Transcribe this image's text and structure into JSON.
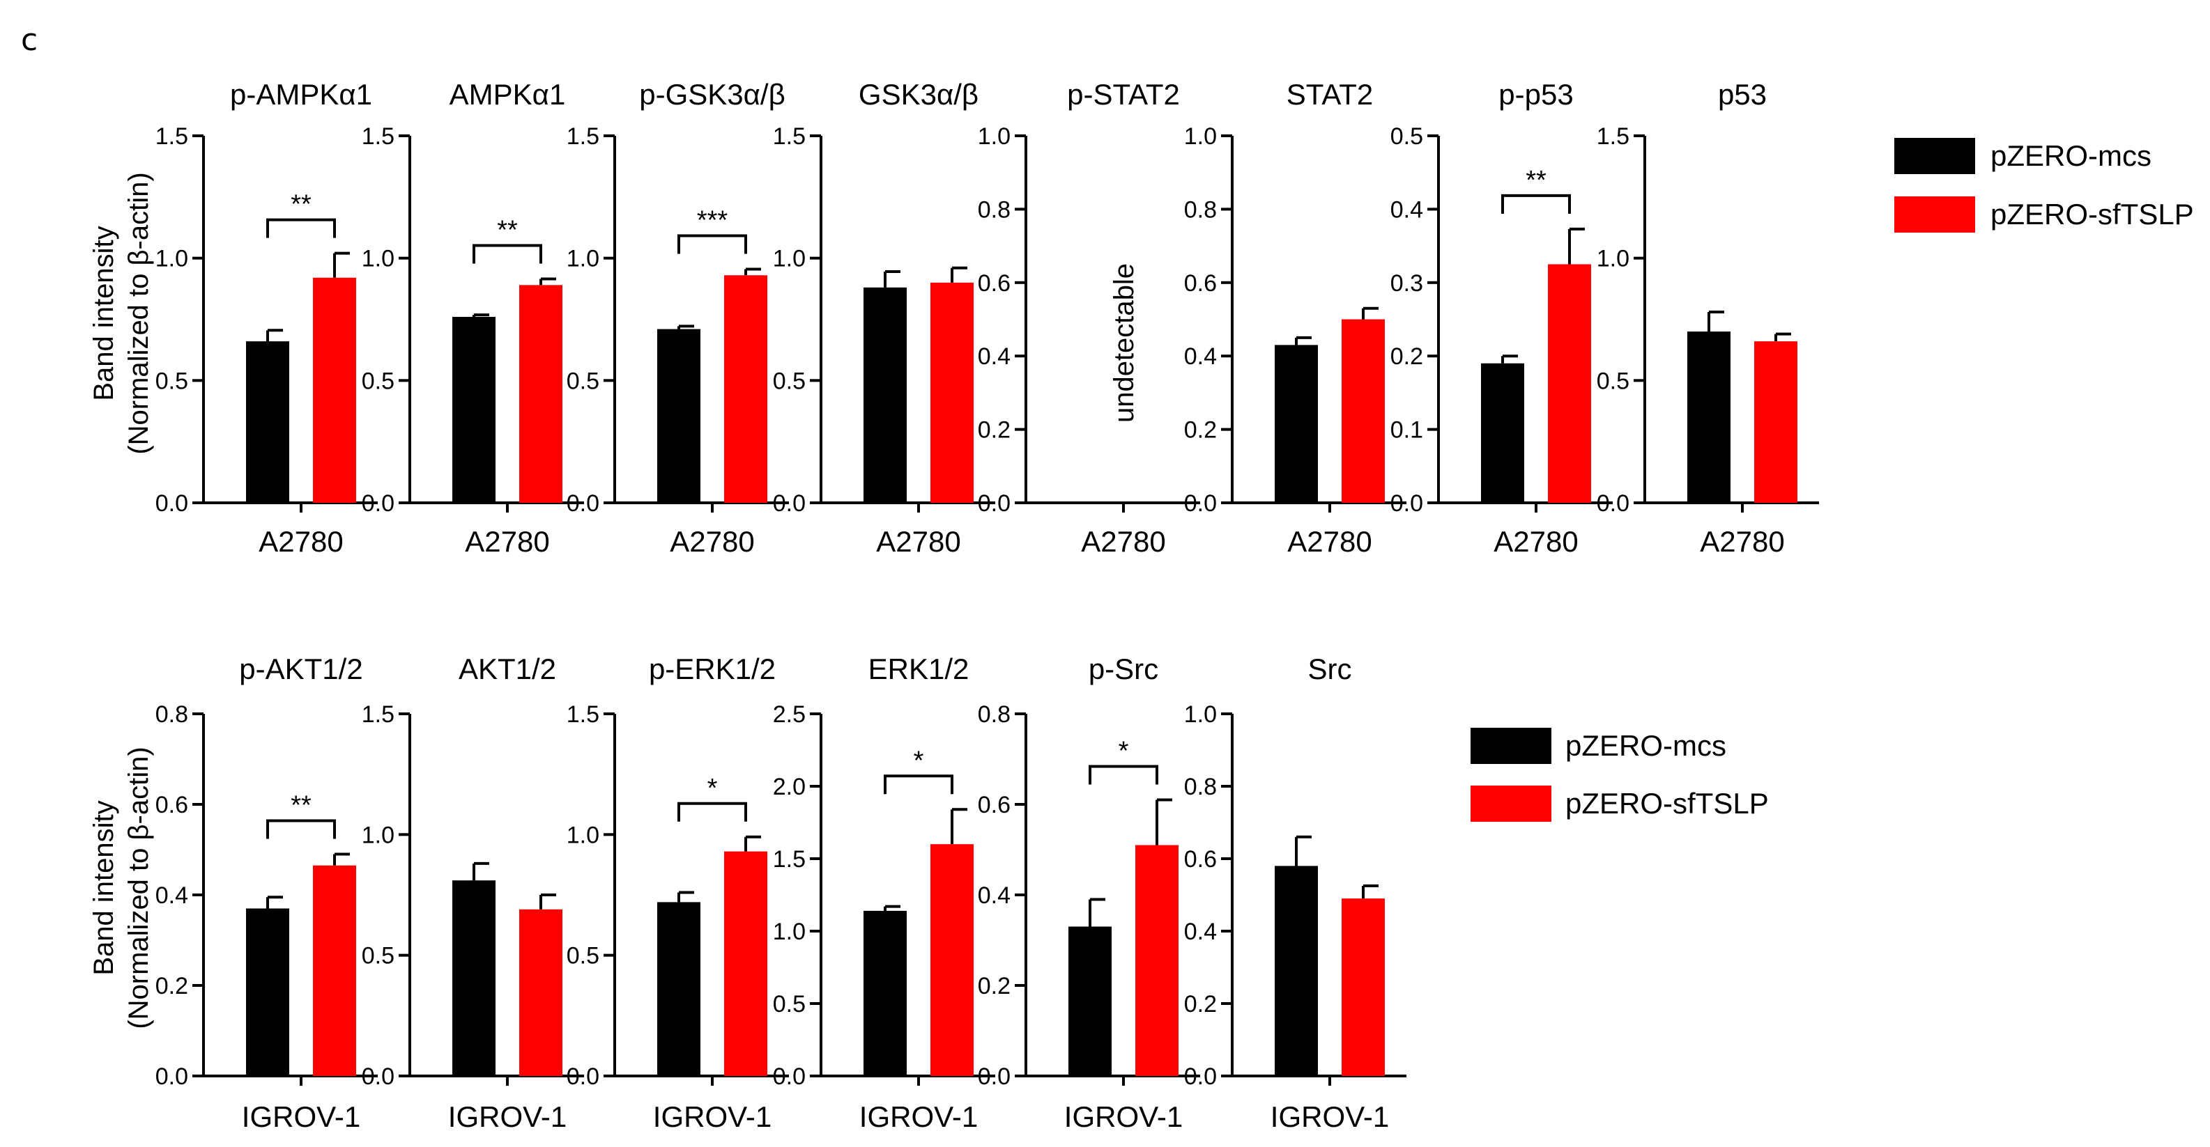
{
  "panel_label": "c",
  "y_label_line1": "Band intensity",
  "y_label_line2": "(Normalized to β-actin)",
  "legend": [
    {
      "label": "pZERO-mcs",
      "color": "#000000"
    },
    {
      "label": "pZERO-sfTSLP",
      "color": "#ff0000"
    }
  ],
  "colors": {
    "control": "#000000",
    "treatment": "#ff0000",
    "axis": "#000000"
  },
  "chart_data": [
    {
      "type": "bar",
      "title": "p-AMPKα1",
      "categories": [
        "A2780"
      ],
      "series": [
        {
          "name": "pZERO-mcs",
          "values": [
            0.66
          ],
          "errors": [
            0.045
          ]
        },
        {
          "name": "pZERO-sfTSLP",
          "values": [
            0.92
          ],
          "errors": [
            0.1
          ]
        }
      ],
      "ylim": [
        0,
        1.5
      ],
      "yticks": [
        "0.0",
        "0.5",
        "1.0",
        "1.5"
      ],
      "significance": "**"
    },
    {
      "type": "bar",
      "title": "AMPKα1",
      "categories": [
        "A2780"
      ],
      "series": [
        {
          "name": "pZERO-mcs",
          "values": [
            0.76
          ],
          "errors": [
            0.008
          ]
        },
        {
          "name": "pZERO-sfTSLP",
          "values": [
            0.89
          ],
          "errors": [
            0.025
          ]
        }
      ],
      "ylim": [
        0,
        1.5
      ],
      "yticks": [
        "0.0",
        "0.5",
        "1.0",
        "1.5"
      ],
      "significance": "**"
    },
    {
      "type": "bar",
      "title": "p-GSK3α/β",
      "categories": [
        "A2780"
      ],
      "series": [
        {
          "name": "pZERO-mcs",
          "values": [
            0.71
          ],
          "errors": [
            0.012
          ]
        },
        {
          "name": "pZERO-sfTSLP",
          "values": [
            0.93
          ],
          "errors": [
            0.025
          ]
        }
      ],
      "ylim": [
        0,
        1.5
      ],
      "yticks": [
        "0.0",
        "0.5",
        "1.0",
        "1.5"
      ],
      "significance": "***"
    },
    {
      "type": "bar",
      "title": "GSK3α/β",
      "categories": [
        "A2780"
      ],
      "series": [
        {
          "name": "pZERO-mcs",
          "values": [
            0.88
          ],
          "errors": [
            0.065
          ]
        },
        {
          "name": "pZERO-sfTSLP",
          "values": [
            0.9
          ],
          "errors": [
            0.06
          ]
        }
      ],
      "ylim": [
        0,
        1.5
      ],
      "yticks": [
        "0.0",
        "0.5",
        "1.0",
        "1.5"
      ],
      "significance": ""
    },
    {
      "type": "bar",
      "title": "p-STAT2",
      "categories": [
        "A2780"
      ],
      "series": [
        {
          "name": "pZERO-mcs",
          "values": [
            0
          ],
          "errors": [
            0
          ]
        },
        {
          "name": "pZERO-sfTSLP",
          "values": [
            0
          ],
          "errors": [
            0
          ]
        }
      ],
      "ylim": [
        0,
        1.0
      ],
      "yticks": [
        "0.0",
        "0.2",
        "0.4",
        "0.6",
        "0.8",
        "1.0"
      ],
      "significance": "",
      "annotation": "undetectable"
    },
    {
      "type": "bar",
      "title": "STAT2",
      "categories": [
        "A2780"
      ],
      "series": [
        {
          "name": "pZERO-mcs",
          "values": [
            0.43
          ],
          "errors": [
            0.02
          ]
        },
        {
          "name": "pZERO-sfTSLP",
          "values": [
            0.5
          ],
          "errors": [
            0.03
          ]
        }
      ],
      "ylim": [
        0,
        1.0
      ],
      "yticks": [
        "0.0",
        "0.2",
        "0.4",
        "0.6",
        "0.8",
        "1.0"
      ],
      "significance": ""
    },
    {
      "type": "bar",
      "title": "p-p53",
      "categories": [
        "A2780"
      ],
      "series": [
        {
          "name": "pZERO-mcs",
          "values": [
            0.19
          ],
          "errors": [
            0.01
          ]
        },
        {
          "name": "pZERO-sfTSLP",
          "values": [
            0.325
          ],
          "errors": [
            0.048
          ]
        }
      ],
      "ylim": [
        0,
        0.5
      ],
      "yticks": [
        "0.0",
        "0.1",
        "0.2",
        "0.3",
        "0.4",
        "0.5"
      ],
      "significance": "**"
    },
    {
      "type": "bar",
      "title": "p53",
      "categories": [
        "A2780"
      ],
      "series": [
        {
          "name": "pZERO-mcs",
          "values": [
            0.7
          ],
          "errors": [
            0.08
          ]
        },
        {
          "name": "pZERO-sfTSLP",
          "values": [
            0.66
          ],
          "errors": [
            0.03
          ]
        }
      ],
      "ylim": [
        0,
        1.5
      ],
      "yticks": [
        "0.0",
        "0.5",
        "1.0",
        "1.5"
      ],
      "significance": ""
    },
    {
      "type": "bar",
      "title": "p-AKT1/2",
      "categories": [
        "IGROV-1"
      ],
      "series": [
        {
          "name": "pZERO-mcs",
          "values": [
            0.37
          ],
          "errors": [
            0.025
          ]
        },
        {
          "name": "pZERO-sfTSLP",
          "values": [
            0.465
          ],
          "errors": [
            0.025
          ]
        }
      ],
      "ylim": [
        0,
        0.8
      ],
      "yticks": [
        "0.0",
        "0.2",
        "0.4",
        "0.6",
        "0.8"
      ],
      "significance": "**"
    },
    {
      "type": "bar",
      "title": "AKT1/2",
      "categories": [
        "IGROV-1"
      ],
      "series": [
        {
          "name": "pZERO-mcs",
          "values": [
            0.81
          ],
          "errors": [
            0.07
          ]
        },
        {
          "name": "pZERO-sfTSLP",
          "values": [
            0.69
          ],
          "errors": [
            0.06
          ]
        }
      ],
      "ylim": [
        0,
        1.5
      ],
      "yticks": [
        "0.0",
        "0.5",
        "1.0",
        "1.5"
      ],
      "significance": ""
    },
    {
      "type": "bar",
      "title": "p-ERK1/2",
      "categories": [
        "IGROV-1"
      ],
      "series": [
        {
          "name": "pZERO-mcs",
          "values": [
            0.72
          ],
          "errors": [
            0.04
          ]
        },
        {
          "name": "pZERO-sfTSLP",
          "values": [
            0.93
          ],
          "errors": [
            0.06
          ]
        }
      ],
      "ylim": [
        0,
        1.5
      ],
      "yticks": [
        "0.0",
        "0.5",
        "1.0",
        "1.5"
      ],
      "significance": "*"
    },
    {
      "type": "bar",
      "title": "ERK1/2",
      "categories": [
        "IGROV-1"
      ],
      "series": [
        {
          "name": "pZERO-mcs",
          "values": [
            1.14
          ],
          "errors": [
            0.03
          ]
        },
        {
          "name": "pZERO-sfTSLP",
          "values": [
            1.6
          ],
          "errors": [
            0.24
          ]
        }
      ],
      "ylim": [
        0,
        2.5
      ],
      "yticks": [
        "0.0",
        "0.5",
        "1.0",
        "1.5",
        "2.0",
        "2.5"
      ],
      "significance": "*"
    },
    {
      "type": "bar",
      "title": "p-Src",
      "categories": [
        "IGROV-1"
      ],
      "series": [
        {
          "name": "pZERO-mcs",
          "values": [
            0.33
          ],
          "errors": [
            0.06
          ]
        },
        {
          "name": "pZERO-sfTSLP",
          "values": [
            0.51
          ],
          "errors": [
            0.1
          ]
        }
      ],
      "ylim": [
        0,
        0.8
      ],
      "yticks": [
        "0.0",
        "0.2",
        "0.4",
        "0.6",
        "0.8"
      ],
      "significance": "*"
    },
    {
      "type": "bar",
      "title": "Src",
      "categories": [
        "IGROV-1"
      ],
      "series": [
        {
          "name": "pZERO-mcs",
          "values": [
            0.58
          ],
          "errors": [
            0.08
          ]
        },
        {
          "name": "pZERO-sfTSLP",
          "values": [
            0.49
          ],
          "errors": [
            0.035
          ]
        }
      ],
      "ylim": [
        0,
        1.0
      ],
      "yticks": [
        "0.0",
        "0.2",
        "0.4",
        "0.6",
        "0.8",
        "1.0"
      ],
      "significance": ""
    }
  ]
}
